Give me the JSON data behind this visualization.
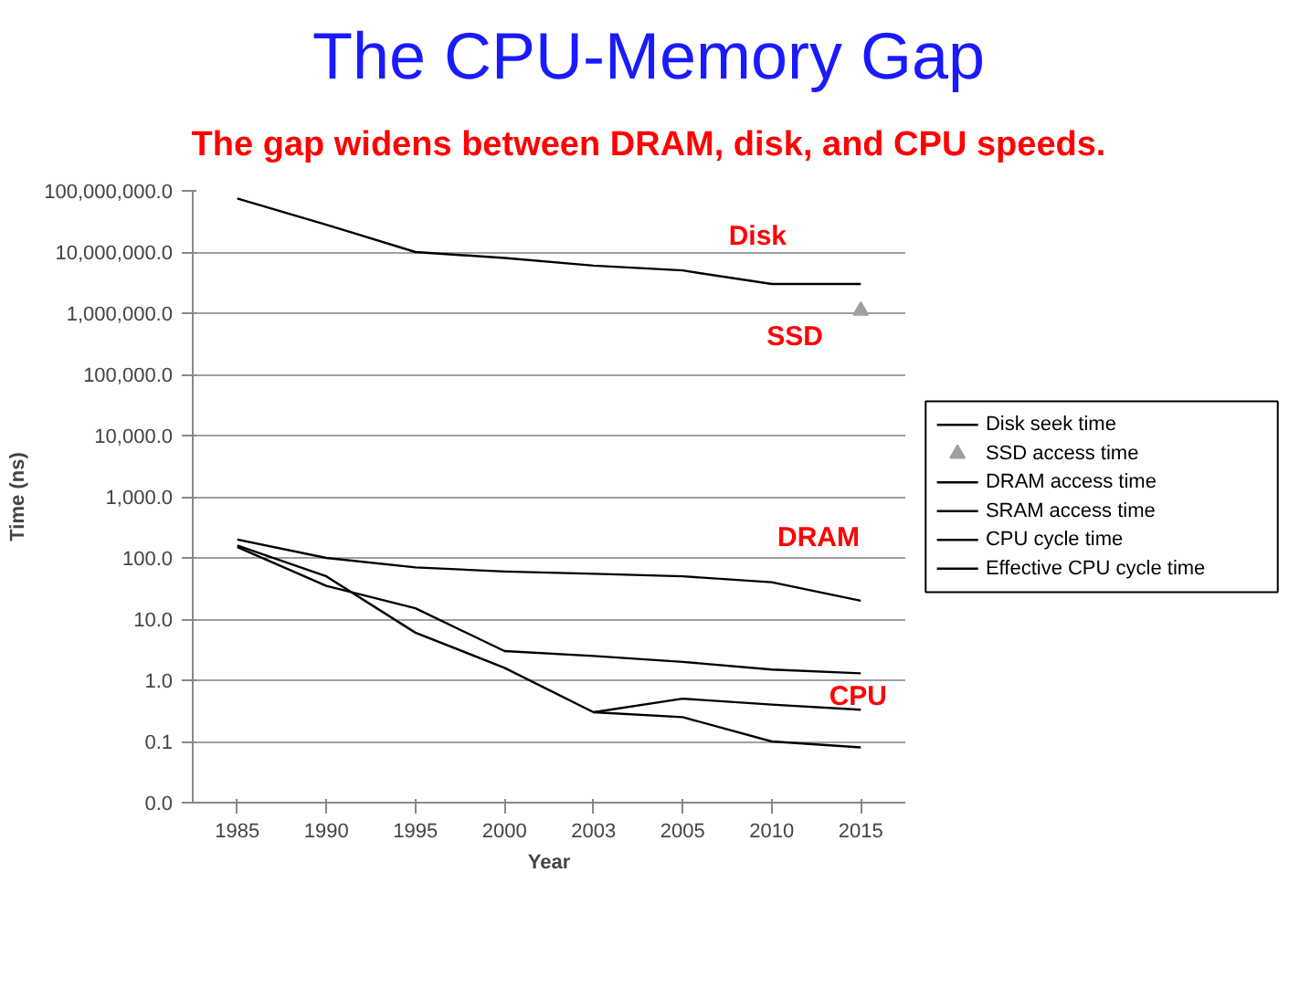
{
  "chart_data": {
    "type": "line",
    "title": "The CPU-Memory Gap",
    "subtitle": "The gap widens between DRAM, disk, and CPU speeds.",
    "xlabel": "Year",
    "ylabel": "Time (ns)",
    "categories": [
      "1985",
      "1990",
      "1995",
      "2000",
      "2003",
      "2005",
      "2010",
      "2015"
    ],
    "series": [
      {
        "name": "Disk seek time",
        "color": "#000000",
        "values": [
          75000000,
          28000000,
          10000000,
          8000000,
          6000000,
          5000000,
          3000000,
          3000000
        ]
      },
      {
        "name": "SSD access time",
        "type": "scatter",
        "color": "#a0a0a0",
        "marker": "triangle",
        "values": [
          null,
          null,
          null,
          null,
          null,
          null,
          null,
          1100000
        ]
      },
      {
        "name": "DRAM access time",
        "color": "#000000",
        "values": [
          200,
          100,
          70,
          60,
          55,
          50,
          40,
          20
        ]
      },
      {
        "name": "SRAM access time",
        "color": "#000000",
        "values": [
          150,
          35,
          15,
          3,
          2.5,
          2,
          1.5,
          1.3
        ]
      },
      {
        "name": "CPU cycle time",
        "color": "#000000",
        "values": [
          160,
          50,
          6,
          1.6,
          0.3,
          0.25,
          0.1,
          0.08
        ]
      },
      {
        "name": "Effective CPU cycle time",
        "color": "#000000",
        "values": [
          null,
          null,
          null,
          null,
          0.3,
          0.5,
          0.4,
          0.33
        ]
      }
    ],
    "log": true,
    "ylim": [
      0.01,
      100000000
    ],
    "yticks": [
      {
        "value": 0.01,
        "label": "0.0"
      },
      {
        "value": 0.1,
        "label": "0.1"
      },
      {
        "value": 1,
        "label": "1.0"
      },
      {
        "value": 10,
        "label": "10.0"
      },
      {
        "value": 100,
        "label": "100.0"
      },
      {
        "value": 1000,
        "label": "1,000.0"
      },
      {
        "value": 10000,
        "label": "10,000.0"
      },
      {
        "value": 100000,
        "label": "100,000.0"
      },
      {
        "value": 1000000,
        "label": "1,000,000.0"
      },
      {
        "value": 10000000,
        "label": "10,000,000.0"
      },
      {
        "value": 100000000,
        "label": "100,000,000.0"
      }
    ],
    "grid": "y",
    "legend": "right",
    "annotations": [
      "Disk",
      "SSD",
      "DRAM",
      "CPU"
    ]
  }
}
